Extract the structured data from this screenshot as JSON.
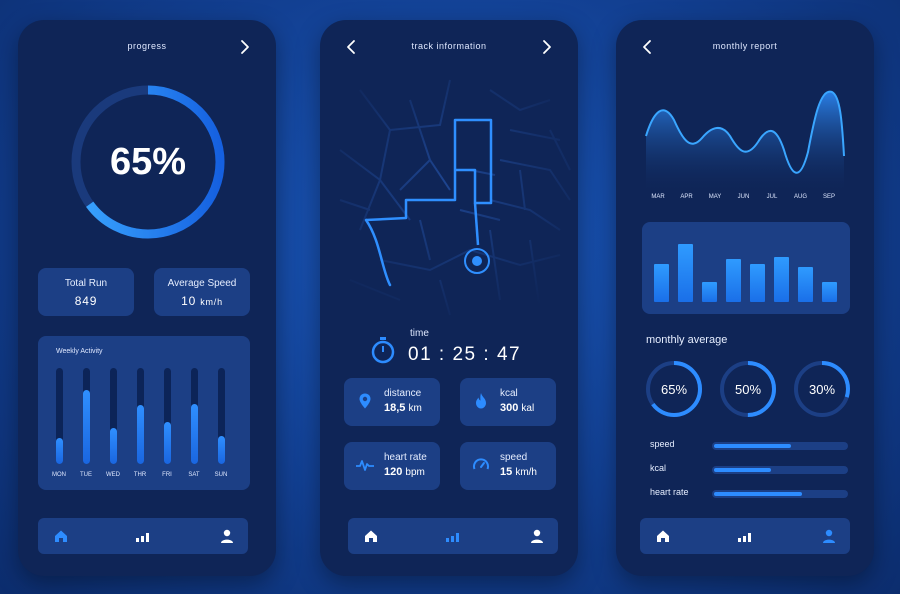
{
  "colors": {
    "background": "#123f91",
    "panel": "#0f2557",
    "card": "#1c3f85",
    "accent": "#2d8cff"
  },
  "progress_screen": {
    "title": "progress",
    "percent": 0.65,
    "percent_label": "65%",
    "total_run": {
      "label": "Total Run",
      "value": "849"
    },
    "average_speed": {
      "label": "Average Speed",
      "value": "10",
      "unit": "km/h"
    },
    "weekly_activity": {
      "title": "Weekly Activity",
      "days": [
        {
          "label": "MON",
          "level": 0.27
        },
        {
          "label": "TUE",
          "level": 0.77
        },
        {
          "label": "WED",
          "level": 0.38
        },
        {
          "label": "THR",
          "level": 0.61
        },
        {
          "label": "FRI",
          "level": 0.44
        },
        {
          "label": "SAT",
          "level": 0.62
        },
        {
          "label": "SUN",
          "level": 0.29
        }
      ]
    },
    "nav": [
      "home-icon",
      "stats-icon",
      "profile-icon"
    ]
  },
  "track_screen": {
    "title": "track information",
    "time": {
      "label": "time",
      "value": "01 : 25 : 47"
    },
    "cards": [
      {
        "icon": "location-pin-icon",
        "label": "distance",
        "value": "18,5",
        "unit": "km"
      },
      {
        "icon": "flame-icon",
        "label": "kcal",
        "value": "300",
        "unit": "kal"
      },
      {
        "icon": "heart-rate-icon",
        "label": "heart rate",
        "value": "120",
        "unit": "bpm"
      },
      {
        "icon": "speedometer-icon",
        "label": "speed",
        "value": "15",
        "unit": "km/h"
      }
    ],
    "nav": [
      "home-icon",
      "stats-icon",
      "profile-icon"
    ]
  },
  "report_screen": {
    "title": "monthly report",
    "months": [
      "MAR",
      "APR",
      "MAY",
      "JUN",
      "JUL",
      "AUG",
      "SEP"
    ],
    "bar_levels": [
      0.57,
      0.88,
      0.31,
      0.65,
      0.58,
      0.68,
      0.53,
      0.3
    ],
    "monthly_average_title": "monthly average",
    "averages": [
      {
        "label": "65%",
        "value": 0.65
      },
      {
        "label": "50%",
        "value": 0.5
      },
      {
        "label": "30%",
        "value": 0.3
      }
    ],
    "metrics": [
      {
        "label": "speed",
        "value": 0.58
      },
      {
        "label": "kcal",
        "value": 0.43
      },
      {
        "label": "heart rate",
        "value": 0.67
      }
    ],
    "nav": [
      "home-icon",
      "stats-icon",
      "profile-icon"
    ]
  }
}
